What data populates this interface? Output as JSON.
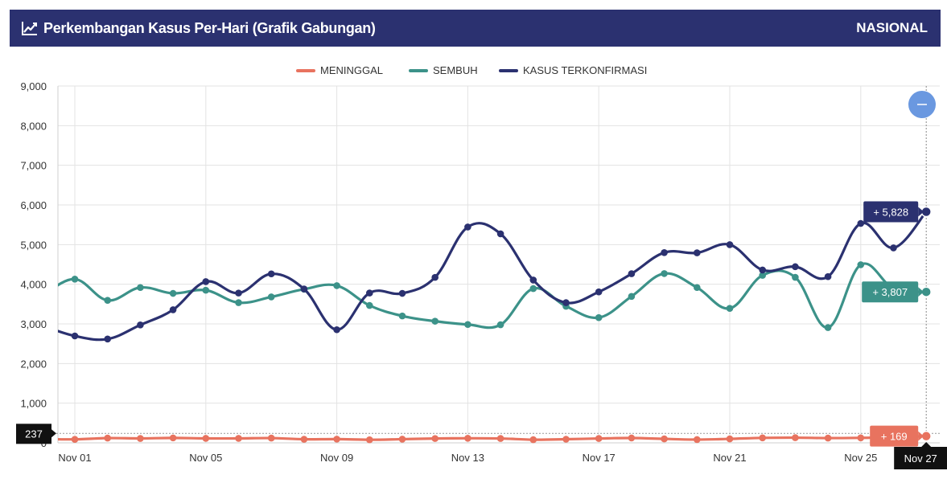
{
  "header": {
    "title": "Perkembangan Kasus Per-Hari (Grafik Gabungan)",
    "scope": "NASIONAL",
    "icon": "line-chart-icon",
    "background": "#2b3170"
  },
  "controls": {
    "zoom_icon": "minus-icon",
    "zoom_color": "#6a98e0"
  },
  "chart_data": {
    "type": "line",
    "title": "Perkembangan Kasus Per-Hari (Grafik Gabungan)",
    "xlabel": "",
    "ylabel": "",
    "ylim": [
      0,
      9000
    ],
    "yticks": [
      "0",
      "1,000",
      "2,000",
      "3,000",
      "4,000",
      "5,000",
      "6,000",
      "7,000",
      "8,000",
      "9,000"
    ],
    "ytick_values": [
      0,
      1000,
      2000,
      3000,
      4000,
      5000,
      6000,
      7000,
      8000,
      9000
    ],
    "xticks": [
      "Nov 01",
      "Nov 05",
      "Nov 09",
      "Nov 13",
      "Nov 17",
      "Nov 21",
      "Nov 25"
    ],
    "x": [
      "Oct 31",
      "Nov 01",
      "Nov 02",
      "Nov 03",
      "Nov 04",
      "Nov 05",
      "Nov 06",
      "Nov 07",
      "Nov 08",
      "Nov 09",
      "Nov 10",
      "Nov 11",
      "Nov 12",
      "Nov 13",
      "Nov 14",
      "Nov 15",
      "Nov 16",
      "Nov 17",
      "Nov 18",
      "Nov 19",
      "Nov 20",
      "Nov 21",
      "Nov 22",
      "Nov 23",
      "Nov 24",
      "Nov 25",
      "Nov 26",
      "Nov 27"
    ],
    "grid": true,
    "legend_position": "top-center",
    "series": [
      {
        "name": "MENINGGAL",
        "color": "#e8735f",
        "values": [
          98,
          88,
          120,
          111,
          124,
          112,
          112,
          120,
          90,
          94,
          77,
          92,
          109,
          115,
          110,
          79,
          91,
          110,
          122,
          100,
          82,
          100,
          125,
          130,
          120,
          126,
          140,
          169
        ]
      },
      {
        "name": "SEMBUH",
        "color": "#3c9289",
        "values": [
          3700,
          4129,
          3594,
          3917,
          3770,
          3849,
          3536,
          3681,
          3875,
          3965,
          3464,
          3200,
          3068,
          2985,
          2979,
          3890,
          3444,
          3159,
          3693,
          4269,
          3917,
          3392,
          4225,
          4175,
          2907,
          4492,
          3891,
          3807
        ]
      },
      {
        "name": "KASUS TERKONFIRMASI",
        "color": "#2b3170",
        "values": [
          2960,
          2696,
          2618,
          2973,
          3356,
          4065,
          3778,
          4262,
          3880,
          2853,
          3779,
          3770,
          4173,
          5444,
          5272,
          4106,
          3535,
          3807,
          4265,
          4798,
          4792,
          4998,
          4360,
          4442,
          4192,
          5534,
          4917,
          5828
        ]
      }
    ],
    "tooltip": {
      "date": "Nov 27",
      "cursor_value": "237",
      "labels": [
        "+ 5,828",
        "+ 3,807",
        "+ 169"
      ]
    }
  }
}
